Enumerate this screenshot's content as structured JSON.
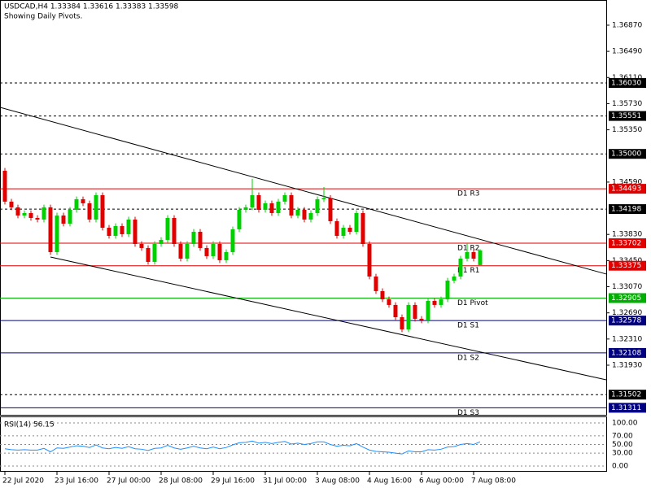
{
  "chart_data": {
    "type": "candlestick",
    "title": "USDCAD,H4  1.33384 1.33616 1.33383 1.33598",
    "subtitle": "Showing Daily Pivots.",
    "up_color": "#00d000",
    "down_color": "#e00000",
    "open": [
      1.34755,
      1.34306,
      1.34223,
      1.34105,
      1.3414,
      1.34069,
      1.34046,
      1.34223,
      1.33573,
      1.34105,
      1.33986,
      1.34187,
      1.34341,
      1.34282,
      1.34046,
      1.344,
      1.33927,
      1.33809,
      1.33951,
      1.33833,
      1.34046,
      1.33691,
      1.33632,
      1.33431,
      1.33691,
      1.3375,
      1.34069,
      1.33691,
      1.33478,
      1.33691,
      1.33868,
      1.33632,
      1.33514,
      1.33691,
      1.33455,
      1.33573,
      1.33904,
      1.34187,
      1.34223,
      1.344,
      1.34187,
      1.34282,
      1.3414,
      1.34306,
      1.344,
      1.34105,
      1.34187,
      1.34046,
      1.3414,
      1.34341,
      1.3436,
      1.34022,
      1.33809,
      1.33927,
      1.33868,
      1.3414,
      1.33691,
      1.33218,
      1.33006,
      1.32887,
      1.32805,
      1.32627,
      1.3245,
      1.32805,
      1.32604,
      1.3258,
      1.32864,
      1.32805,
      1.32887,
      1.33159,
      1.33218,
      1.33478,
      1.33573,
      1.33384
    ],
    "high": [
      1.34795,
      1.34346,
      1.34263,
      1.3418,
      1.3418,
      1.34109,
      1.34263,
      1.34263,
      1.34145,
      1.34145,
      1.34227,
      1.34381,
      1.34381,
      1.34322,
      1.3444,
      1.3444,
      1.33967,
      1.33991,
      1.33991,
      1.34086,
      1.34086,
      1.33731,
      1.33672,
      1.33731,
      1.3379,
      1.34109,
      1.34109,
      1.33731,
      1.33731,
      1.33908,
      1.33908,
      1.33672,
      1.33731,
      1.33731,
      1.33613,
      1.33944,
      1.34227,
      1.34263,
      1.34637,
      1.3444,
      1.34322,
      1.34322,
      1.34346,
      1.3444,
      1.3444,
      1.34227,
      1.34227,
      1.3418,
      1.34381,
      1.34518,
      1.344,
      1.34062,
      1.33967,
      1.33967,
      1.3418,
      1.3418,
      1.33731,
      1.33258,
      1.33046,
      1.32927,
      1.32845,
      1.32667,
      1.32845,
      1.32845,
      1.32644,
      1.32904,
      1.32904,
      1.32927,
      1.33199,
      1.33258,
      1.33518,
      1.33702,
      1.33613,
      1.33616
    ],
    "low": [
      1.34266,
      1.34183,
      1.34065,
      1.34065,
      1.34029,
      1.34006,
      1.34006,
      1.33533,
      1.33533,
      1.33946,
      1.33946,
      1.34147,
      1.34242,
      1.34006,
      1.34006,
      1.33887,
      1.33769,
      1.33769,
      1.33793,
      1.33793,
      1.33651,
      1.33592,
      1.33391,
      1.33391,
      1.33651,
      1.3371,
      1.33651,
      1.33438,
      1.33438,
      1.33651,
      1.33592,
      1.33474,
      1.33474,
      1.33415,
      1.33415,
      1.33533,
      1.33864,
      1.34147,
      1.34183,
      1.34147,
      1.34147,
      1.341,
      1.341,
      1.34266,
      1.34065,
      1.34065,
      1.34006,
      1.34006,
      1.341,
      1.34301,
      1.33982,
      1.33769,
      1.33769,
      1.33828,
      1.33828,
      1.33651,
      1.33178,
      1.32966,
      1.32847,
      1.32765,
      1.32587,
      1.3241,
      1.3241,
      1.32564,
      1.3254,
      1.3254,
      1.32765,
      1.32765,
      1.32847,
      1.33119,
      1.33178,
      1.33438,
      1.33438,
      1.33383
    ],
    "close": [
      1.34306,
      1.34223,
      1.34105,
      1.3414,
      1.34069,
      1.34046,
      1.34223,
      1.33573,
      1.34105,
      1.33986,
      1.34187,
      1.34341,
      1.34282,
      1.34046,
      1.344,
      1.33927,
      1.33809,
      1.33951,
      1.33833,
      1.34046,
      1.33691,
      1.33632,
      1.33431,
      1.33691,
      1.3375,
      1.34069,
      1.33691,
      1.33478,
      1.33691,
      1.33868,
      1.33632,
      1.33514,
      1.33691,
      1.33455,
      1.33573,
      1.33904,
      1.34187,
      1.34223,
      1.344,
      1.34187,
      1.34282,
      1.3414,
      1.34306,
      1.344,
      1.34105,
      1.34187,
      1.34046,
      1.3414,
      1.34341,
      1.3436,
      1.34022,
      1.33809,
      1.33927,
      1.33868,
      1.3414,
      1.33691,
      1.33218,
      1.33006,
      1.32887,
      1.32805,
      1.32627,
      1.3245,
      1.32805,
      1.32604,
      1.3258,
      1.32864,
      1.32805,
      1.32887,
      1.33159,
      1.33218,
      1.33478,
      1.33573,
      1.33478,
      1.33598
    ],
    "xlim": [
      -0.75,
      92.375
    ],
    "xticks": [
      {
        "value": 0,
        "label": "22 Jul 2020"
      },
      {
        "value": 8,
        "label": "23 Jul 16:00"
      },
      {
        "value": 16,
        "label": "27 Jul 00:00"
      },
      {
        "value": 24,
        "label": "28 Jul 08:00"
      },
      {
        "value": 32,
        "label": "29 Jul 16:00"
      },
      {
        "value": 40,
        "label": "31 Jul 00:00"
      },
      {
        "value": 48,
        "label": "3 Aug 08:00"
      },
      {
        "value": 56,
        "label": "4 Aug 16:00"
      },
      {
        "value": 64,
        "label": "6 Aug 00:00"
      },
      {
        "value": 72,
        "label": "7 Aug 08:00"
      }
    ],
    "ylim": [
      1.31209,
      1.37236
    ],
    "yticks": [
      {
        "value": 1.3687,
        "label": "1.36870"
      },
      {
        "value": 1.3649,
        "label": "1.36490"
      },
      {
        "value": 1.3611,
        "label": "1.36110"
      },
      {
        "value": 1.3573,
        "label": "1.35730"
      },
      {
        "value": 1.3535,
        "label": "1.35350"
      },
      {
        "value": 1.3459,
        "label": "1.34590"
      },
      {
        "value": 1.3383,
        "label": "1.33830"
      },
      {
        "value": 1.3345,
        "label": "1.33450"
      },
      {
        "value": 1.3307,
        "label": "1.33070"
      },
      {
        "value": 1.3269,
        "label": "1.32690"
      },
      {
        "value": 1.3231,
        "label": "1.32310"
      },
      {
        "value": 1.3193,
        "label": "1.31930"
      }
    ],
    "levels": [
      {
        "value": 1.3603,
        "label": "1.36030",
        "color": "#000000",
        "style": "dashed"
      },
      {
        "value": 1.35551,
        "label": "1.35551",
        "color": "#000000",
        "style": "dashed"
      },
      {
        "value": 1.35,
        "label": "1.35000",
        "color": "#000000",
        "style": "dashed"
      },
      {
        "name": "D1 R3",
        "value": 1.34493,
        "label": "1.34493",
        "color": "#e00000",
        "style": "solid"
      },
      {
        "value": 1.34198,
        "label": "1.34198",
        "color": "#000000",
        "style": "dashed"
      },
      {
        "name": "D1 R2",
        "value": 1.33702,
        "label": "1.33702",
        "color": "#e00000",
        "style": "solid"
      },
      {
        "name": "D1 R1",
        "value": 1.33375,
        "label": "1.33375",
        "color": "#e00000",
        "style": "solid"
      },
      {
        "name": "D1 Pivot",
        "value": 1.32905,
        "label": "1.32905",
        "color": "#00b000",
        "style": "solid"
      },
      {
        "name": "D1 S1",
        "value": 1.32578,
        "label": "1.32578",
        "color": "#000080",
        "style": "solid"
      },
      {
        "name": "D1 S2",
        "value": 1.32108,
        "label": "1.32108",
        "color": "#000080",
        "style": "solid"
      },
      {
        "value": 1.31502,
        "label": "1.31502",
        "color": "#000000",
        "style": "dashed"
      },
      {
        "name": "D1 S3",
        "value": 1.31311,
        "label": "1.31311",
        "color": "#000080",
        "style": "solid"
      }
    ],
    "trendlines": [
      {
        "x": [
          -0.75,
          92.375
        ],
        "y": [
          1.35676,
          1.33254
        ],
        "color": "#000000"
      },
      {
        "x": [
          7,
          92.375
        ],
        "y": [
          1.33502,
          1.31717
        ],
        "color": "#000000"
      }
    ],
    "rsi": {
      "type": "line",
      "title": "RSI(14) 56.15",
      "color": "#1e90ff",
      "values": [
        40,
        38,
        37,
        38,
        37,
        37,
        41,
        33,
        42,
        41,
        44,
        47,
        46,
        43,
        49,
        42,
        40,
        43,
        41,
        45,
        40,
        39,
        36,
        41,
        42,
        48,
        42,
        39,
        42,
        46,
        42,
        40,
        44,
        40,
        43,
        49,
        54,
        55,
        58,
        53,
        55,
        52,
        55,
        57,
        51,
        53,
        50,
        52,
        56,
        56,
        50,
        46,
        48,
        47,
        52,
        44,
        37,
        34,
        33,
        32,
        30,
        28,
        35,
        33,
        33,
        38,
        37,
        39,
        44,
        45,
        50,
        52,
        50,
        56.15
      ],
      "ylim": [
        -13.2,
        115
      ],
      "yticks": [
        {
          "value": 100,
          "label": "100.00"
        },
        {
          "value": 70,
          "label": "70.00"
        },
        {
          "value": 50,
          "label": "50.00"
        },
        {
          "value": 30,
          "label": "30.00"
        },
        {
          "value": 0,
          "label": "0.00"
        }
      ]
    }
  }
}
